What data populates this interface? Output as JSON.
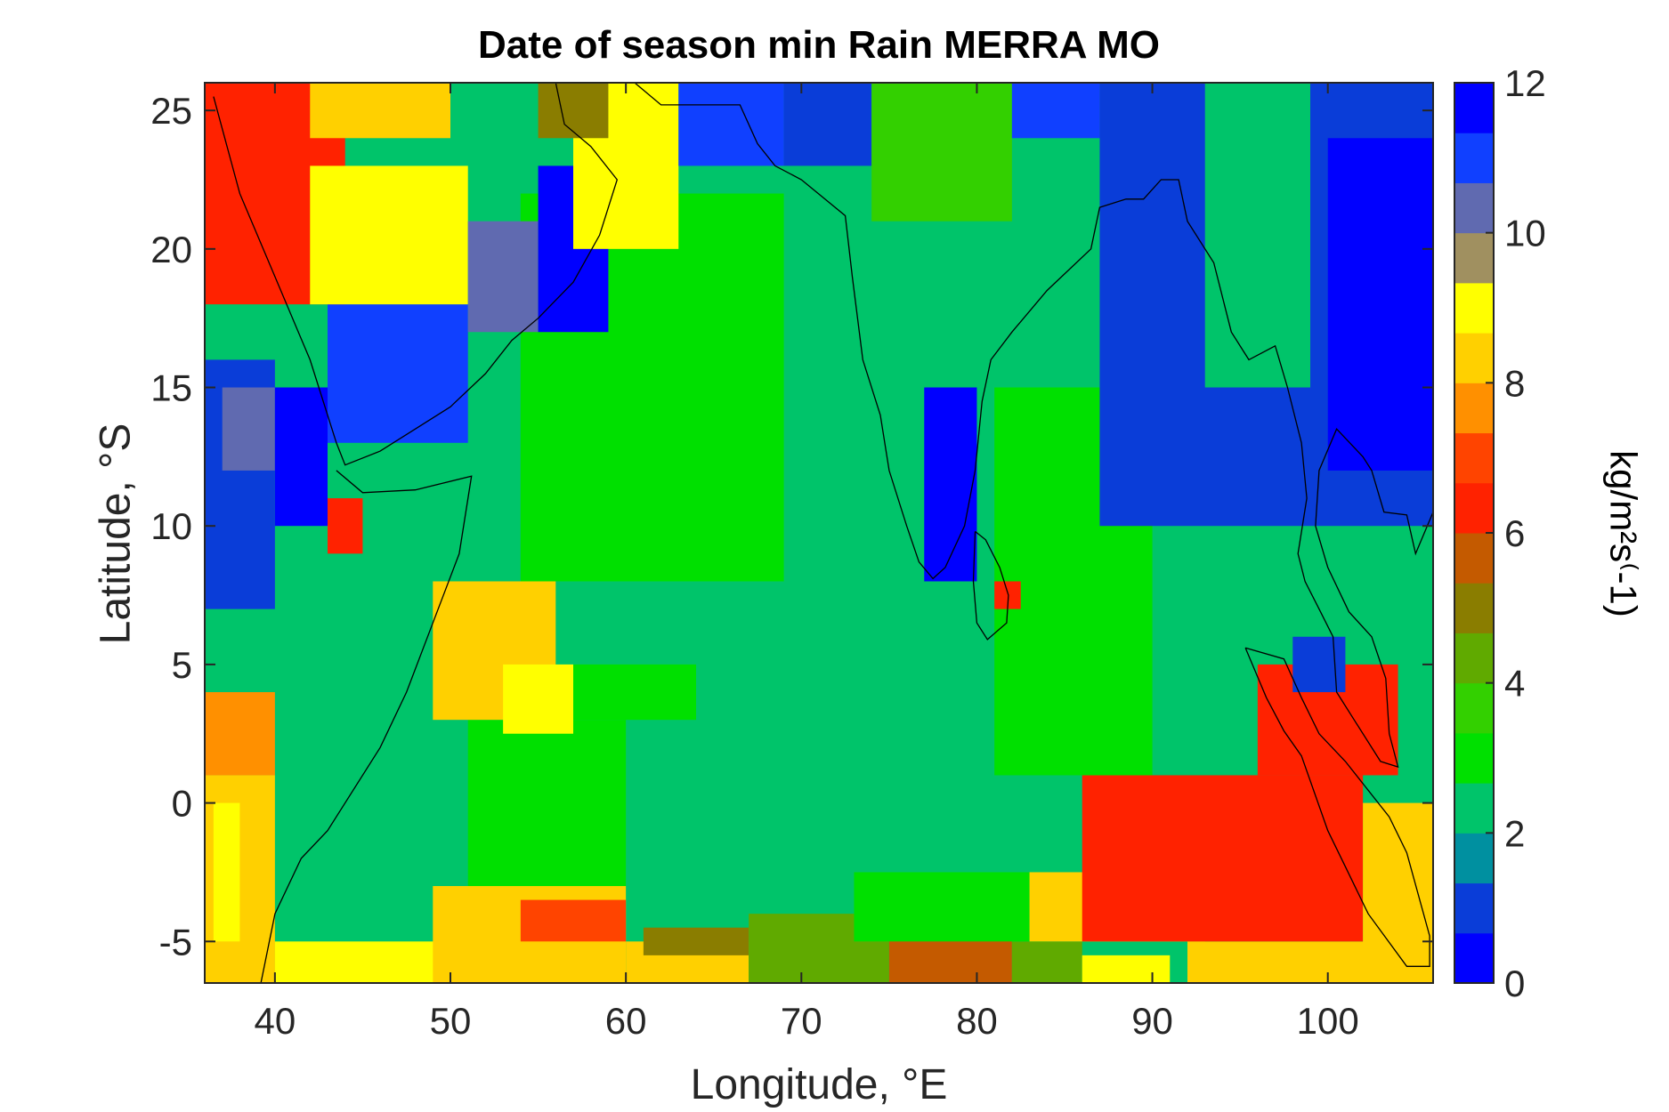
{
  "chart_data": {
    "type": "heatmap",
    "title": "Date of season min Rain MERRA MO",
    "xlabel": "Longitude, °E",
    "ylabel": "Latitude, °S",
    "colorbar_label": "kg/m²s⁽-1)",
    "xlim": [
      36,
      106
    ],
    "ylim": [
      -6.5,
      26
    ],
    "clim": [
      0,
      12
    ],
    "x_ticks": [
      40,
      50,
      60,
      70,
      80,
      90,
      100
    ],
    "y_ticks": [
      -5,
      0,
      5,
      10,
      15,
      20,
      25
    ],
    "colorbar_ticks": [
      0,
      2,
      4,
      6,
      8,
      10,
      12
    ],
    "colormap": [
      "#0000ff",
      "#0a3dd8",
      "#0090a0",
      "#00c46a",
      "#00e000",
      "#33d000",
      "#60aa00",
      "#8a7d00",
      "#c45a00",
      "#ff2200",
      "#ff4400",
      "#ff9000",
      "#ffd000",
      "#ffff00",
      "#a09060",
      "#606ab0",
      "#1040ff",
      "#0000ff"
    ],
    "grid": false,
    "regions": [
      {
        "value": 2.2,
        "lon": [
          36,
          106
        ],
        "lat": [
          -6.5,
          26
        ]
      },
      {
        "value": 8.5,
        "lon": [
          36,
          40
        ],
        "lat": [
          -6.5,
          1
        ]
      },
      {
        "value": 7.5,
        "lon": [
          36,
          40
        ],
        "lat": [
          1,
          4
        ]
      },
      {
        "value": 9,
        "lon": [
          36.5,
          38
        ],
        "lat": [
          -5,
          0
        ]
      },
      {
        "value": 8.3,
        "lon": [
          38,
          40
        ],
        "lat": [
          -6.5,
          -5
        ]
      },
      {
        "value": 8.8,
        "lon": [
          40,
          51
        ],
        "lat": [
          -6.5,
          -5
        ]
      },
      {
        "value": 8.3,
        "lon": [
          49,
          60
        ],
        "lat": [
          -6.5,
          -3
        ]
      },
      {
        "value": 7,
        "lon": [
          54,
          60
        ],
        "lat": [
          -5,
          -3.5
        ]
      },
      {
        "value": 8.5,
        "lon": [
          60,
          67
        ],
        "lat": [
          -6.5,
          -5
        ]
      },
      {
        "value": 5,
        "lon": [
          61,
          67
        ],
        "lat": [
          -5.5,
          -4.5
        ]
      },
      {
        "value": 4.5,
        "lon": [
          67,
          75
        ],
        "lat": [
          -6.5,
          -4
        ]
      },
      {
        "value": 5.5,
        "lon": [
          75,
          82
        ],
        "lat": [
          -6.5,
          -4.5
        ]
      },
      {
        "value": 4,
        "lon": [
          82,
          86
        ],
        "lat": [
          -6.5,
          -5
        ]
      },
      {
        "value": 8.8,
        "lon": [
          86,
          91
        ],
        "lat": [
          -6.5,
          -5.5
        ]
      },
      {
        "value": 8.5,
        "lon": [
          92,
          106
        ],
        "lat": [
          -6.5,
          -5
        ]
      },
      {
        "value": 3,
        "lon": [
          73,
          84
        ],
        "lat": [
          -5,
          -2.5
        ]
      },
      {
        "value": 8.5,
        "lon": [
          83,
          93
        ],
        "lat": [
          -5,
          -2.5
        ]
      },
      {
        "value": 6.2,
        "lon": [
          86,
          102
        ],
        "lat": [
          -5,
          1
        ]
      },
      {
        "value": 6.2,
        "lon": [
          96,
          104
        ],
        "lat": [
          1,
          5
        ]
      },
      {
        "value": 8.5,
        "lon": [
          102,
          106
        ],
        "lat": [
          -6,
          0
        ]
      },
      {
        "value": 3,
        "lon": [
          51,
          60
        ],
        "lat": [
          -3,
          3
        ]
      },
      {
        "value": 3,
        "lon": [
          57,
          64
        ],
        "lat": [
          3,
          5
        ]
      },
      {
        "value": 8.3,
        "lon": [
          49,
          56
        ],
        "lat": [
          3,
          8
        ]
      },
      {
        "value": 9,
        "lon": [
          53,
          57
        ],
        "lat": [
          2.5,
          5
        ]
      },
      {
        "value": 3,
        "lon": [
          81,
          90
        ],
        "lat": [
          1,
          15
        ]
      },
      {
        "value": 3,
        "lon": [
          54,
          69
        ],
        "lat": [
          8,
          22
        ]
      },
      {
        "value": 0.6,
        "lon": [
          77,
          80
        ],
        "lat": [
          8,
          15
        ]
      },
      {
        "value": 6.2,
        "lon": [
          81,
          82.5
        ],
        "lat": [
          7,
          8
        ]
      },
      {
        "value": 1,
        "lon": [
          36,
          40
        ],
        "lat": [
          7,
          16
        ]
      },
      {
        "value": 10.5,
        "lon": [
          37,
          40
        ],
        "lat": [
          12,
          15
        ]
      },
      {
        "value": 6.2,
        "lon": [
          43,
          45
        ],
        "lat": [
          9,
          11
        ]
      },
      {
        "value": 0.5,
        "lon": [
          40,
          43
        ],
        "lat": [
          10,
          15
        ]
      },
      {
        "value": 11,
        "lon": [
          43,
          51
        ],
        "lat": [
          13,
          18
        ]
      },
      {
        "value": 6.2,
        "lon": [
          36,
          44
        ],
        "lat": [
          18,
          26
        ]
      },
      {
        "value": 9,
        "lon": [
          42,
          51
        ],
        "lat": [
          18,
          23
        ]
      },
      {
        "value": 10.5,
        "lon": [
          51,
          55
        ],
        "lat": [
          17,
          21
        ]
      },
      {
        "value": 0.3,
        "lon": [
          55,
          59
        ],
        "lat": [
          17,
          23
        ]
      },
      {
        "value": 8.5,
        "lon": [
          42,
          50
        ],
        "lat": [
          24,
          26
        ]
      },
      {
        "value": 9,
        "lon": [
          57,
          63
        ],
        "lat": [
          20,
          26
        ]
      },
      {
        "value": 5,
        "lon": [
          55,
          59
        ],
        "lat": [
          24,
          26
        ]
      },
      {
        "value": 11,
        "lon": [
          63,
          69
        ],
        "lat": [
          23,
          26
        ]
      },
      {
        "value": 0.8,
        "lon": [
          69,
          74
        ],
        "lat": [
          23,
          26
        ]
      },
      {
        "value": 3.8,
        "lon": [
          74,
          82
        ],
        "lat": [
          21,
          26
        ]
      },
      {
        "value": 11,
        "lon": [
          82,
          87
        ],
        "lat": [
          24,
          26
        ]
      },
      {
        "value": 1.2,
        "lon": [
          87,
          106
        ],
        "lat": [
          10,
          26
        ]
      },
      {
        "value": 2.2,
        "lon": [
          93,
          99
        ],
        "lat": [
          15,
          26
        ]
      },
      {
        "value": 0.4,
        "lon": [
          100,
          106
        ],
        "lat": [
          12,
          24
        ]
      },
      {
        "value": 1.2,
        "lon": [
          98,
          101
        ],
        "lat": [
          4,
          6
        ]
      }
    ]
  }
}
